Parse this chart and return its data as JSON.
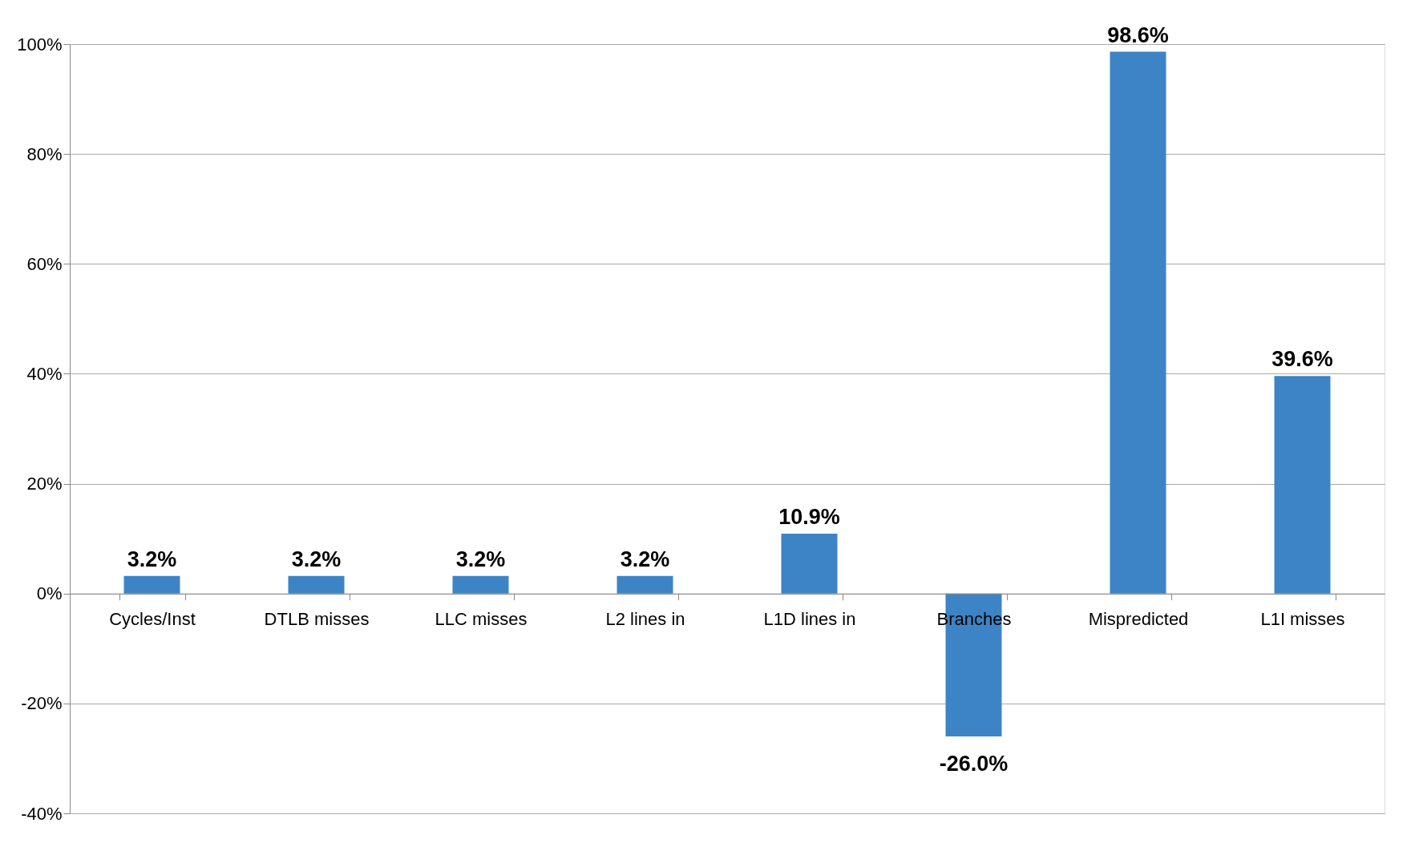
{
  "chart_data": {
    "type": "bar",
    "categories": [
      "Cycles/Inst",
      "DTLB misses",
      "LLC misses",
      "L2 lines in",
      "L1D lines in",
      "Branches",
      "Mispredicted",
      "L1I misses"
    ],
    "values": [
      3.2,
      3.2,
      3.2,
      3.2,
      10.9,
      -26.0,
      98.6,
      39.6
    ],
    "value_labels": [
      "3.2%",
      "3.2%",
      "3.2%",
      "3.2%",
      "10.9%",
      "-26.0%",
      "98.6%",
      "39.6%"
    ],
    "color": "#3d84c6",
    "ylim": [
      -40,
      100
    ],
    "yticks": [
      {
        "value": -40,
        "label": "-40%"
      },
      {
        "value": -20,
        "label": "-20%"
      },
      {
        "value": 0,
        "label": "0%"
      },
      {
        "value": 20,
        "label": "20%"
      },
      {
        "value": 40,
        "label": "40%"
      },
      {
        "value": 60,
        "label": "60%"
      },
      {
        "value": 80,
        "label": "80%"
      },
      {
        "value": 100,
        "label": "100%"
      }
    ],
    "grid": "y"
  }
}
